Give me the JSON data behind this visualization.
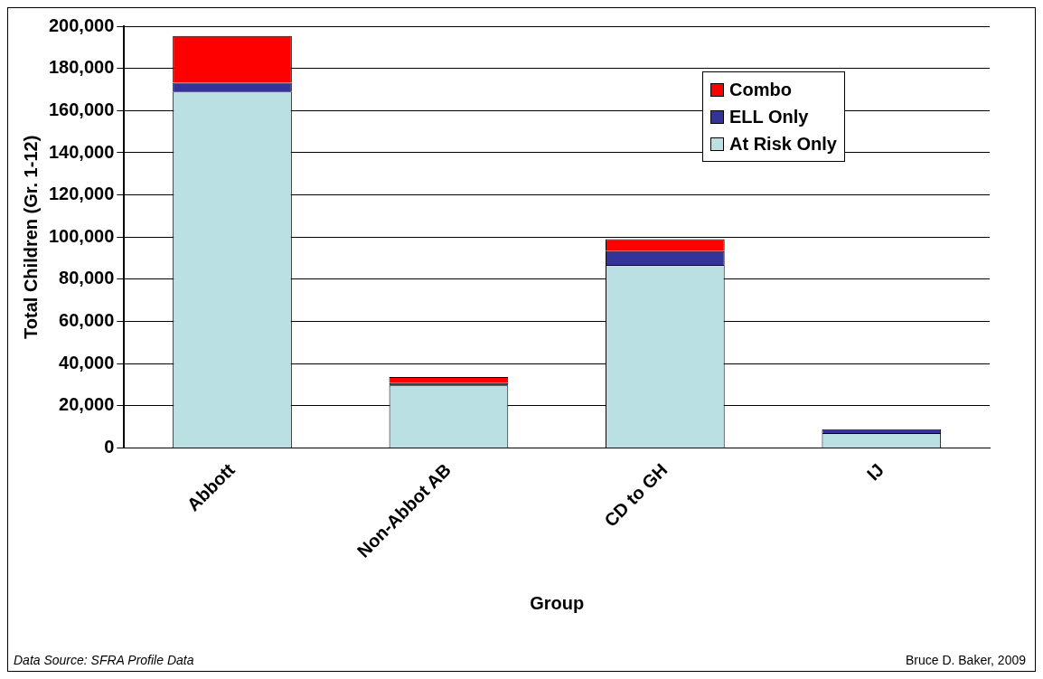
{
  "chart_data": {
    "type": "bar",
    "stacked": true,
    "categories": [
      "Abbott",
      "Non-Abbot AB",
      "CD to GH",
      "IJ"
    ],
    "series": [
      {
        "name": "At Risk Only",
        "color": "#bbe0e3",
        "values": [
          169000,
          29700,
          86900,
          7100
        ]
      },
      {
        "name": "ELL Only",
        "color": "#333399",
        "values": [
          4200,
          1100,
          6500,
          1800
        ]
      },
      {
        "name": "Combo",
        "color": "#ff0000",
        "values": [
          22200,
          2900,
          5700,
          null
        ]
      }
    ],
    "xlabel": "Group",
    "ylabel": "Total Children (Gr. 1-12)",
    "ylim": [
      0,
      200000
    ],
    "yticks": [
      0,
      {
        "value": 20000,
        "label": "20,000"
      },
      {
        "value": 40000,
        "label": "40,000"
      },
      {
        "value": 60000,
        "label": "60,000"
      },
      {
        "value": 80000,
        "label": "80,000"
      },
      {
        "value": 100000,
        "label": "100,000"
      },
      {
        "value": 120000,
        "label": "120,000"
      },
      {
        "value": 140000,
        "label": "140,000"
      },
      {
        "value": 160000,
        "label": "160,000"
      },
      {
        "value": 180000,
        "label": "180,000"
      },
      {
        "value": 200000,
        "label": "200,000"
      }
    ],
    "grid": "y",
    "legend": "top right",
    "annotations": [
      "Data Source: SFRA Profile Data",
      "Bruce D. Baker, 2009"
    ]
  }
}
